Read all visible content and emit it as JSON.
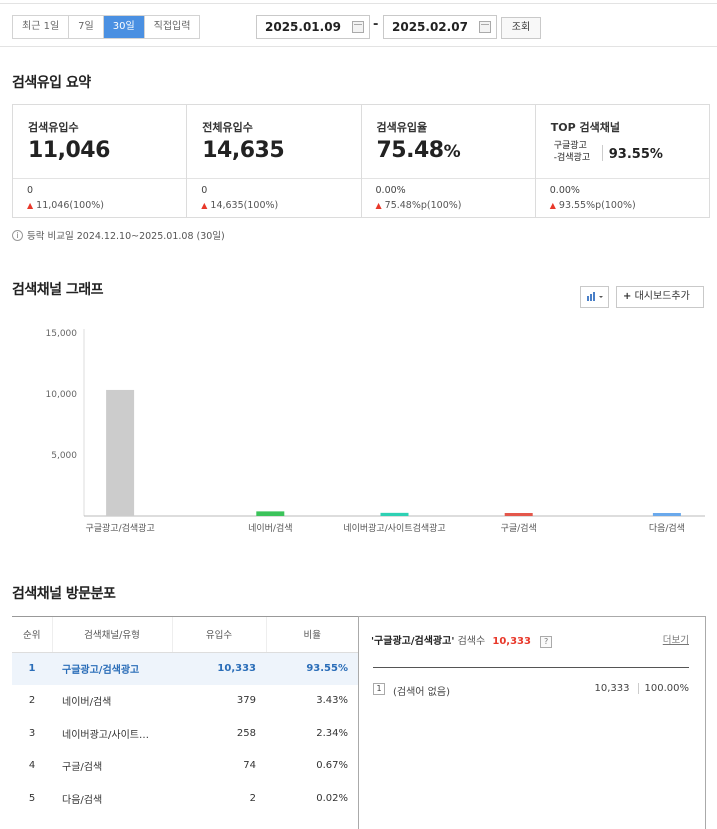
{
  "filter": {
    "periods": [
      {
        "label": "최근 1일",
        "active": false
      },
      {
        "label": "7일",
        "active": false
      },
      {
        "label": "30일",
        "active": true
      },
      {
        "label": "직접입력",
        "active": false
      }
    ],
    "start_date": "2025.01.09",
    "end_date": "2025.02.07",
    "separator": "-",
    "search_label": "조회"
  },
  "summary": {
    "title": "검색유입 요약",
    "cards": [
      {
        "title": "검색유입수",
        "value": "11,046",
        "prev": "0",
        "change": "11,046(100%)"
      },
      {
        "title": "전체유입수",
        "value": "14,635",
        "prev": "0",
        "change": "14,635(100%)"
      },
      {
        "title": "검색유입율",
        "value": "75.48",
        "unit": "%",
        "prev": "0.00%",
        "change": "75.48%p(100%)"
      },
      {
        "title": "TOP 검색채널",
        "channel_line1": "구글광고",
        "channel_line2": "-검색광고",
        "value": "93.55%",
        "prev": "0.00%",
        "change": "93.55%p(100%)"
      }
    ],
    "compare_note": "등락 비교일  2024.12.10~2025.01.08 (30일)"
  },
  "graph": {
    "title": "검색채널 그래프",
    "add_dashboard_label": "대시보드추가"
  },
  "chart_data": {
    "type": "bar",
    "categories": [
      "구글광고/검색광고",
      "네이버/검색",
      "네이버광고/사이트검색광고",
      "구글/검색",
      "다음/검색"
    ],
    "values": [
      10333,
      379,
      258,
      74,
      2
    ],
    "colors": [
      "#cccccc",
      "#3bc35a",
      "#2ed1b4",
      "#e4574b",
      "#6aa9ec"
    ],
    "ylim": [
      0,
      15000
    ],
    "yticks": [
      "15,000",
      "10,000",
      "5,000"
    ],
    "ytick_values": [
      15000,
      10000,
      5000
    ],
    "grid": false
  },
  "distribution": {
    "title": "검색채널 방문분포",
    "headers": [
      "순위",
      "검색채널/유형",
      "유입수",
      "비율"
    ],
    "rows": [
      {
        "rank": "1",
        "channel": "구글광고/검색광고",
        "count": "10,333",
        "ratio": "93.55%"
      },
      {
        "rank": "2",
        "channel": "네이버/검색",
        "count": "379",
        "ratio": "3.43%"
      },
      {
        "rank": "3",
        "channel": "네이버광고/사이트…",
        "count": "258",
        "ratio": "2.34%"
      },
      {
        "rank": "4",
        "channel": "구글/검색",
        "count": "74",
        "ratio": "0.67%"
      },
      {
        "rank": "5",
        "channel": "다음/검색",
        "count": "2",
        "ratio": "0.02%"
      }
    ]
  },
  "detail": {
    "channel": "'구글광고/검색광고'",
    "count_label": "검색수",
    "count": "10,333",
    "help": "?",
    "more_label": "더보기",
    "rows": [
      {
        "rank": "1",
        "keyword": "(검색어 없음)",
        "count": "10,333",
        "ratio": "100.00%"
      }
    ]
  }
}
